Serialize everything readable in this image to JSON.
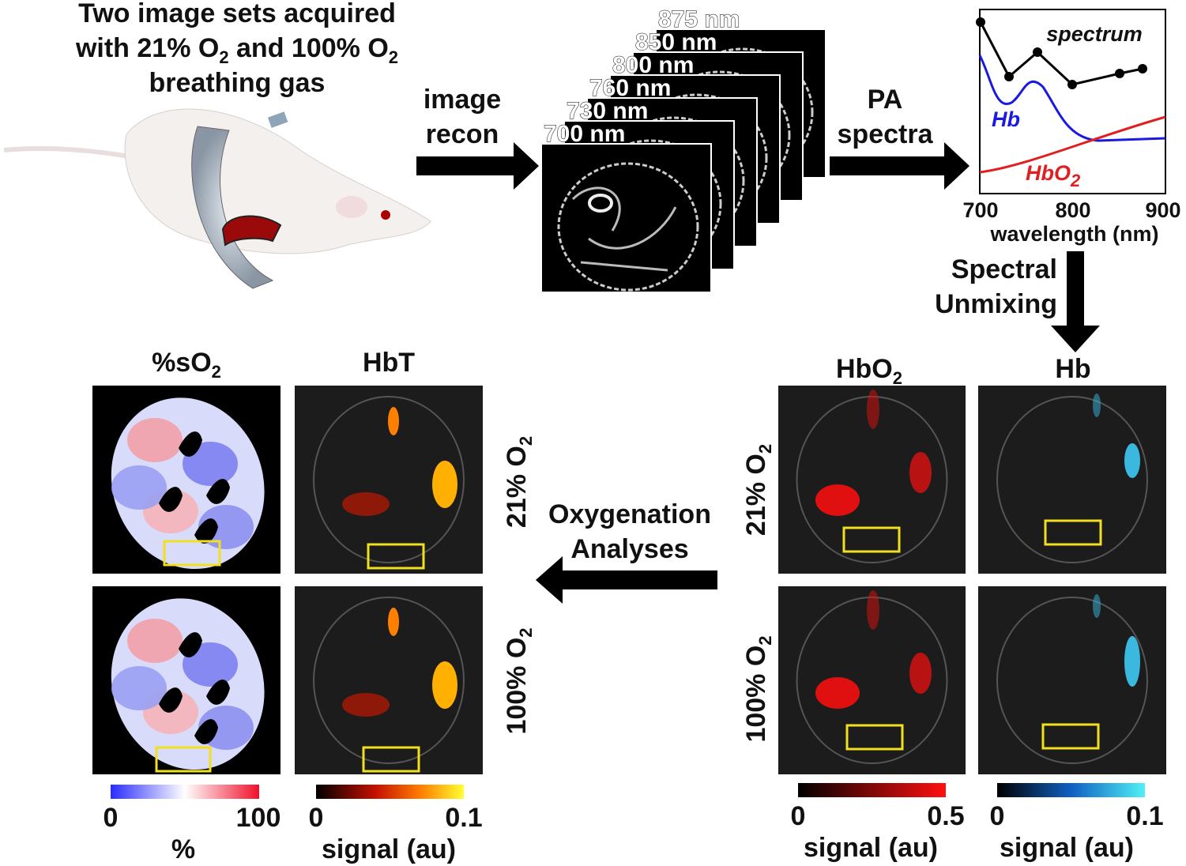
{
  "intro": {
    "line1": "Two image sets acquired",
    "line2": [
      "with 21% O",
      "2",
      " and 100% O",
      "2"
    ],
    "line3": "breathing gas"
  },
  "recon_arrow": [
    "image",
    "recon"
  ],
  "wavelengths": [
    "700 nm",
    "730 nm",
    "760 nm",
    "800 nm",
    "850 nm",
    "875 nm"
  ],
  "spectra_arrow": [
    "PA",
    "spectra"
  ],
  "spectrum_plot": {
    "title": "spectrum",
    "hb": "Hb",
    "hbo2": [
      "HbO",
      "2"
    ],
    "xticks": [
      700,
      800,
      900
    ],
    "xlabel": "wavelength (nm)"
  },
  "unmixing_arrow": [
    "Spectral",
    "Unmixing"
  ],
  "analysis_arrow": [
    "Oxygenation",
    "Analyses"
  ],
  "conditions": {
    "c21": [
      "21% O",
      "2"
    ],
    "c100": [
      "100% O",
      "2"
    ]
  },
  "panels": {
    "so2": {
      "title": [
        "%sO",
        "2"
      ],
      "min": "0",
      "max": "100",
      "unit": "%"
    },
    "hbt": {
      "title": "HbT",
      "min": "0",
      "max": "0.1",
      "unit": "signal (au)"
    },
    "hbo2": {
      "title": [
        "HbO",
        "2"
      ],
      "min": "0",
      "max": "0.5",
      "unit": "signal (au)"
    },
    "hb": {
      "title": "Hb",
      "min": "0",
      "max": "0.1",
      "unit": "signal (au)"
    }
  }
}
